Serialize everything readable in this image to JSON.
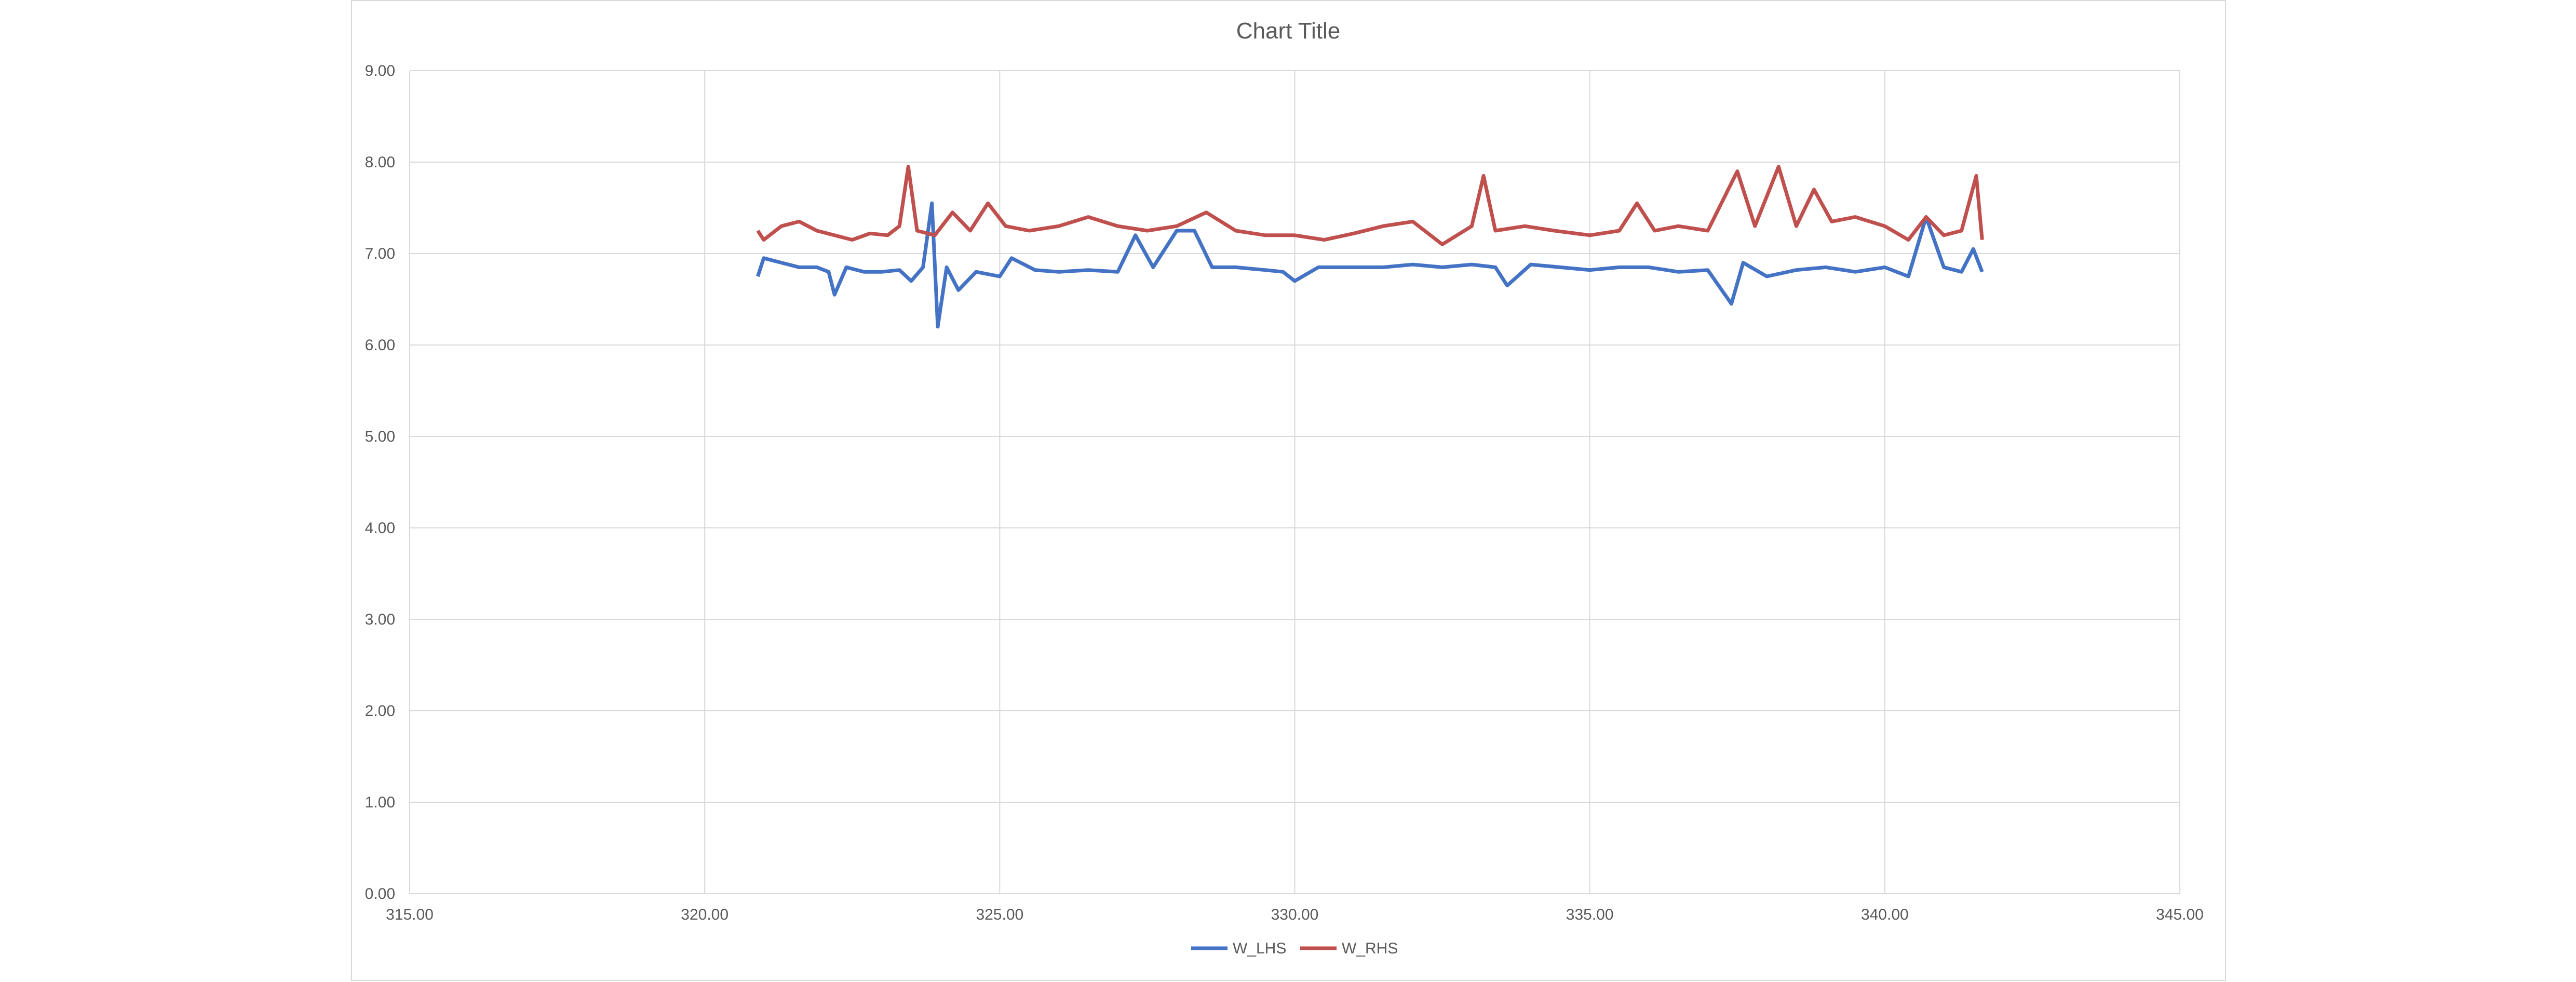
{
  "chart_data": {
    "type": "scatter",
    "title": "Chart Title",
    "xlabel": "",
    "ylabel": "",
    "xlim": [
      315,
      345
    ],
    "ylim": [
      0,
      9
    ],
    "x_ticks": [
      "315.00",
      "320.00",
      "325.00",
      "330.00",
      "335.00",
      "340.00",
      "345.00"
    ],
    "y_ticks": [
      "0.00",
      "1.00",
      "2.00",
      "3.00",
      "4.00",
      "5.00",
      "6.00",
      "7.00",
      "8.00",
      "9.00"
    ],
    "grid": true,
    "legend_position": "bottom",
    "series": [
      {
        "name": "W_LHS",
        "color": "#4472C4",
        "points": [
          [
            320.9,
            6.75
          ],
          [
            321.0,
            6.95
          ],
          [
            321.3,
            6.9
          ],
          [
            321.6,
            6.85
          ],
          [
            321.9,
            6.85
          ],
          [
            322.1,
            6.8
          ],
          [
            322.2,
            6.55
          ],
          [
            322.4,
            6.85
          ],
          [
            322.7,
            6.8
          ],
          [
            323.0,
            6.8
          ],
          [
            323.3,
            6.82
          ],
          [
            323.5,
            6.7
          ],
          [
            323.7,
            6.85
          ],
          [
            323.85,
            7.55
          ],
          [
            323.95,
            6.2
          ],
          [
            324.1,
            6.85
          ],
          [
            324.3,
            6.6
          ],
          [
            324.6,
            6.8
          ],
          [
            325.0,
            6.75
          ],
          [
            325.2,
            6.95
          ],
          [
            325.6,
            6.82
          ],
          [
            326.0,
            6.8
          ],
          [
            326.5,
            6.82
          ],
          [
            327.0,
            6.8
          ],
          [
            327.3,
            7.2
          ],
          [
            327.6,
            6.85
          ],
          [
            328.0,
            7.25
          ],
          [
            328.3,
            7.25
          ],
          [
            328.6,
            6.85
          ],
          [
            329.0,
            6.85
          ],
          [
            329.5,
            6.82
          ],
          [
            329.8,
            6.8
          ],
          [
            330.0,
            6.7
          ],
          [
            330.4,
            6.85
          ],
          [
            331.0,
            6.85
          ],
          [
            331.5,
            6.85
          ],
          [
            332.0,
            6.88
          ],
          [
            332.5,
            6.85
          ],
          [
            333.0,
            6.88
          ],
          [
            333.4,
            6.85
          ],
          [
            333.6,
            6.65
          ],
          [
            334.0,
            6.88
          ],
          [
            334.5,
            6.85
          ],
          [
            335.0,
            6.82
          ],
          [
            335.5,
            6.85
          ],
          [
            336.0,
            6.85
          ],
          [
            336.5,
            6.8
          ],
          [
            337.0,
            6.82
          ],
          [
            337.4,
            6.45
          ],
          [
            337.6,
            6.9
          ],
          [
            338.0,
            6.75
          ],
          [
            338.5,
            6.82
          ],
          [
            339.0,
            6.85
          ],
          [
            339.5,
            6.8
          ],
          [
            340.0,
            6.85
          ],
          [
            340.4,
            6.75
          ],
          [
            340.7,
            7.4
          ],
          [
            341.0,
            6.85
          ],
          [
            341.3,
            6.8
          ],
          [
            341.5,
            7.05
          ],
          [
            341.65,
            6.8
          ]
        ]
      },
      {
        "name": "W_RHS",
        "color": "#C0504D",
        "points": [
          [
            320.9,
            7.25
          ],
          [
            321.0,
            7.15
          ],
          [
            321.3,
            7.3
          ],
          [
            321.6,
            7.35
          ],
          [
            321.9,
            7.25
          ],
          [
            322.2,
            7.2
          ],
          [
            322.5,
            7.15
          ],
          [
            322.8,
            7.22
          ],
          [
            323.1,
            7.2
          ],
          [
            323.3,
            7.3
          ],
          [
            323.45,
            7.95
          ],
          [
            323.6,
            7.25
          ],
          [
            323.9,
            7.2
          ],
          [
            324.2,
            7.45
          ],
          [
            324.5,
            7.25
          ],
          [
            324.8,
            7.55
          ],
          [
            325.1,
            7.3
          ],
          [
            325.5,
            7.25
          ],
          [
            326.0,
            7.3
          ],
          [
            326.5,
            7.4
          ],
          [
            327.0,
            7.3
          ],
          [
            327.5,
            7.25
          ],
          [
            328.0,
            7.3
          ],
          [
            328.5,
            7.45
          ],
          [
            329.0,
            7.25
          ],
          [
            329.5,
            7.2
          ],
          [
            330.0,
            7.2
          ],
          [
            330.5,
            7.15
          ],
          [
            331.0,
            7.22
          ],
          [
            331.5,
            7.3
          ],
          [
            332.0,
            7.35
          ],
          [
            332.5,
            7.1
          ],
          [
            333.0,
            7.3
          ],
          [
            333.2,
            7.85
          ],
          [
            333.4,
            7.25
          ],
          [
            333.9,
            7.3
          ],
          [
            334.4,
            7.25
          ],
          [
            335.0,
            7.2
          ],
          [
            335.5,
            7.25
          ],
          [
            335.8,
            7.55
          ],
          [
            336.1,
            7.25
          ],
          [
            336.5,
            7.3
          ],
          [
            337.0,
            7.25
          ],
          [
            337.5,
            7.9
          ],
          [
            337.8,
            7.3
          ],
          [
            338.2,
            7.95
          ],
          [
            338.5,
            7.3
          ],
          [
            338.8,
            7.7
          ],
          [
            339.1,
            7.35
          ],
          [
            339.5,
            7.4
          ],
          [
            340.0,
            7.3
          ],
          [
            340.4,
            7.15
          ],
          [
            340.7,
            7.4
          ],
          [
            341.0,
            7.2
          ],
          [
            341.3,
            7.25
          ],
          [
            341.55,
            7.85
          ],
          [
            341.65,
            7.15
          ]
        ]
      }
    ]
  }
}
